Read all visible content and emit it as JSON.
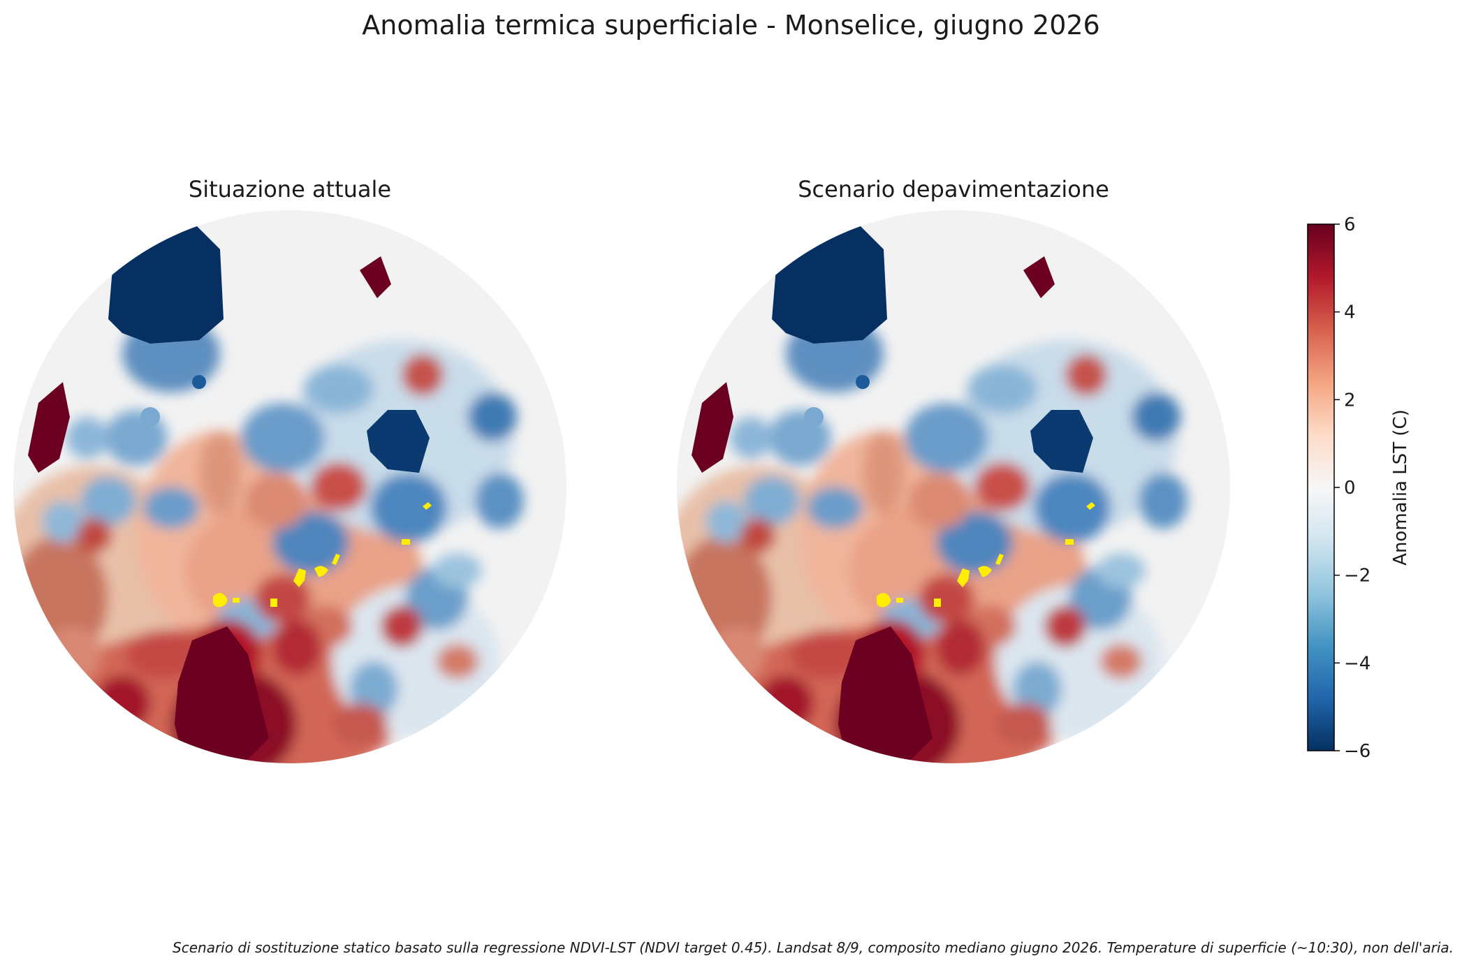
{
  "figure": {
    "title": "Anomalia termica superficiale - Monselice, giugno 2026",
    "footnote": "Scenario di sostituzione statico basato sulla regressione NDVI-LST (NDVI target 0.45). Landsat 8/9, composito mediano giugno 2026. Temperature di superficie (~10:30), non dell'aria."
  },
  "panels": [
    {
      "title": "Situazione attuale"
    },
    {
      "title": "Scenario depavimentazione"
    }
  ],
  "colorbar": {
    "label": "Anomalia LST (C)",
    "min": -6,
    "max": 6,
    "ticks": [
      "6",
      "4",
      "2",
      "0",
      "−2",
      "−4",
      "−6"
    ],
    "colormap": "RdBu_r",
    "colors": [
      "#67001f",
      "#b2182b",
      "#d6604d",
      "#f4a582",
      "#fddbc7",
      "#f7f7f7",
      "#d1e5f0",
      "#92c5de",
      "#4393c3",
      "#2166ac",
      "#053061"
    ]
  },
  "highlight_color": "#ffee00"
}
